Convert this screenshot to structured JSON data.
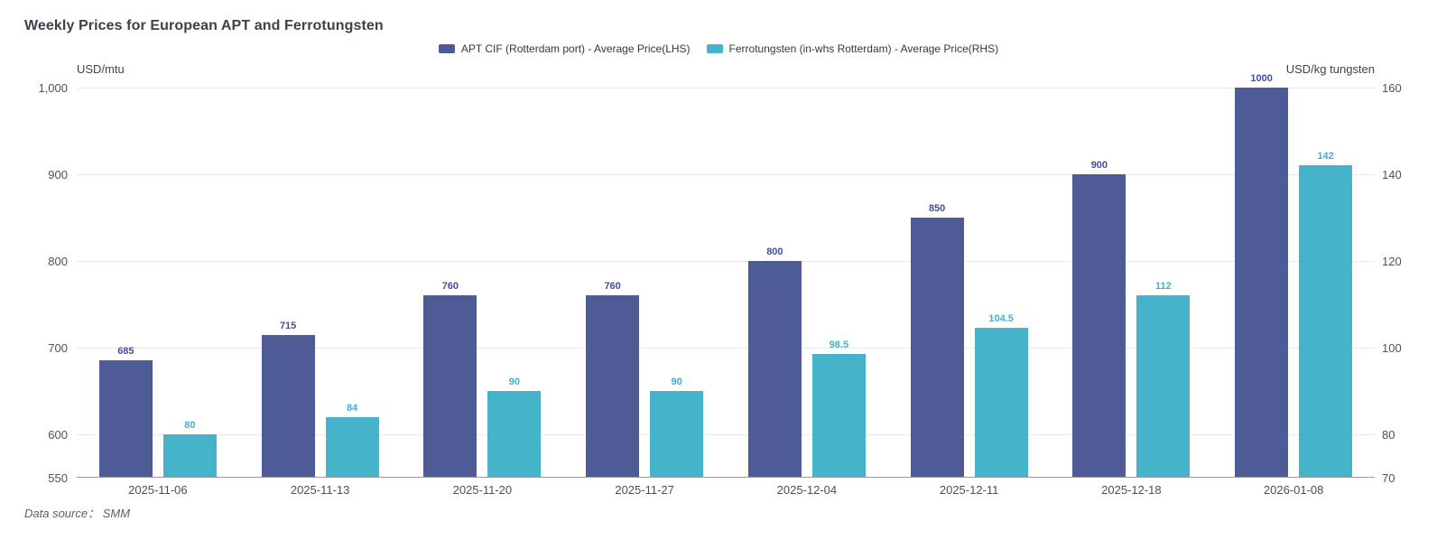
{
  "title": "Weekly Prices for European APT and Ferrotungsten",
  "data_source": "Data source：  SMM",
  "legend": [
    {
      "label": "APT CIF (Rotterdam port) - Average Price(LHS)",
      "color": "#4e5b96"
    },
    {
      "label": "Ferrotungsten (in-whs Rotterdam) - Average Price(RHS)",
      "color": "#45b3c9"
    }
  ],
  "chart_data": {
    "type": "bar",
    "title": "Weekly Prices for European APT and Ferrotungsten",
    "legend_position": "top",
    "grid": true,
    "categories": [
      "2025-11-06",
      "2025-11-13",
      "2025-11-20",
      "2025-11-27",
      "2025-12-04",
      "2025-12-11",
      "2025-12-18",
      "2026-01-08"
    ],
    "series": [
      {
        "name": "APT CIF (Rotterdam port) - Average Price(LHS)",
        "axis": "left",
        "color": "#4e5b96",
        "label_color": "#414fa0",
        "values": [
          685,
          715,
          760,
          760,
          800,
          850,
          900,
          1000
        ]
      },
      {
        "name": "Ferrotungsten (in-whs Rotterdam) - Average Price(RHS)",
        "axis": "right",
        "color": "#45b3c9",
        "label_color": "#41b0d0",
        "values": [
          80,
          84,
          90,
          90,
          98.5,
          104.5,
          112,
          142
        ]
      }
    ],
    "left_axis": {
      "label": "USD/mtu",
      "min": 550,
      "max": 1000,
      "ticks": [
        550,
        600,
        700,
        800,
        900,
        1000
      ],
      "tick_labels": [
        "550",
        "600",
        "700",
        "800",
        "900",
        "1,000"
      ]
    },
    "right_axis": {
      "label": "USD/kg tungsten",
      "min": 70,
      "max": 160,
      "ticks": [
        70,
        80,
        100,
        120,
        140,
        160
      ],
      "tick_labels": [
        "70",
        "80",
        "100",
        "120",
        "140",
        "160"
      ]
    }
  }
}
